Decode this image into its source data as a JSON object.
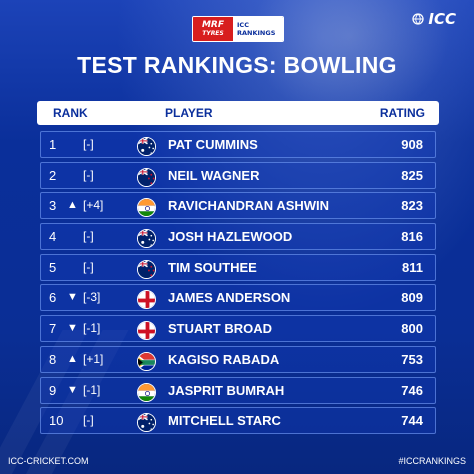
{
  "sponsor": {
    "mrf_line1": "MRF",
    "mrf_line2": "TYRES",
    "icc_line1": "ICC",
    "icc_line2": "RANKINGS"
  },
  "brand": {
    "logo_text": "ICC"
  },
  "title": "TEST RANKINGS: BOWLING",
  "table": {
    "headers": {
      "rank": "RANK",
      "player": "PLAYER",
      "rating": "RATING"
    },
    "rows": [
      {
        "rank": "1",
        "arrow": "",
        "move": "[-]",
        "flag": "australia",
        "player": "PAT CUMMINS",
        "rating": "908"
      },
      {
        "rank": "2",
        "arrow": "",
        "move": "[-]",
        "flag": "new-zealand",
        "player": "NEIL WAGNER",
        "rating": "825"
      },
      {
        "rank": "3",
        "arrow": "▲",
        "move": "[+4]",
        "flag": "india",
        "player": "RAVICHANDRAN ASHWIN",
        "rating": "823"
      },
      {
        "rank": "4",
        "arrow": "",
        "move": "[-]",
        "flag": "australia",
        "player": "JOSH HAZLEWOOD",
        "rating": "816"
      },
      {
        "rank": "5",
        "arrow": "",
        "move": "[-]",
        "flag": "new-zealand",
        "player": "TIM SOUTHEE",
        "rating": "811"
      },
      {
        "rank": "6",
        "arrow": "▼",
        "move": "[-3]",
        "flag": "england",
        "player": "JAMES ANDERSON",
        "rating": "809"
      },
      {
        "rank": "7",
        "arrow": "▼",
        "move": "[-1]",
        "flag": "england",
        "player": "STUART BROAD",
        "rating": "800"
      },
      {
        "rank": "8",
        "arrow": "▲",
        "move": "[+1]",
        "flag": "south-africa",
        "player": "KAGISO RABADA",
        "rating": "753"
      },
      {
        "rank": "9",
        "arrow": "▼",
        "move": "[-1]",
        "flag": "india",
        "player": "JASPRIT BUMRAH",
        "rating": "746"
      },
      {
        "rank": "10",
        "arrow": "",
        "move": "[-]",
        "flag": "australia",
        "player": "MITCHELL STARC",
        "rating": "744"
      }
    ]
  },
  "footer": {
    "left": "ICC-CRICKET.COM",
    "right": "#ICCRANKINGS"
  },
  "colors": {
    "background": "#0b2f9c",
    "accent_white": "#ffffff",
    "mrf_red": "#d81e1e"
  }
}
